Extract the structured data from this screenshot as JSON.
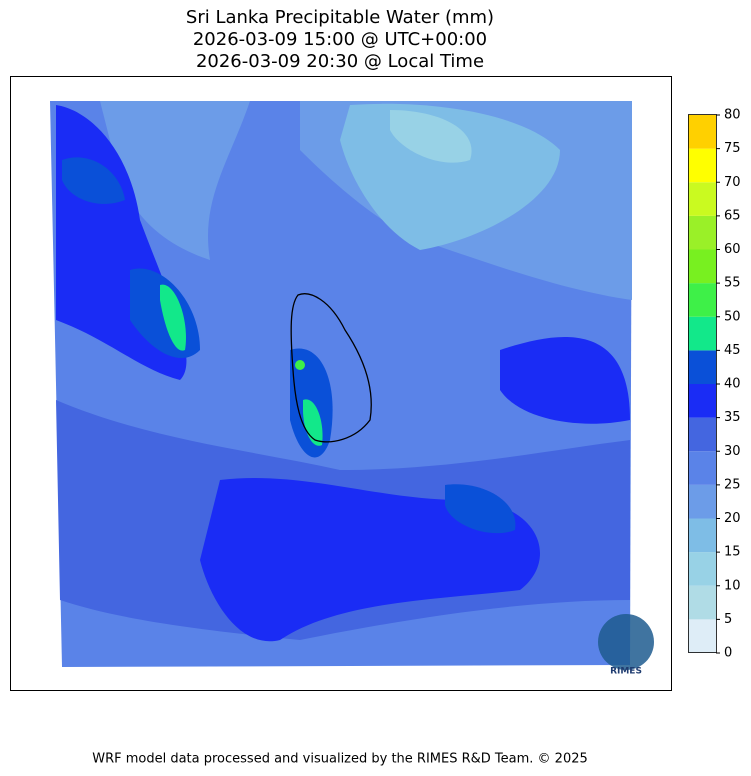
{
  "title": [
    "Sri Lanka Precipitable Water (mm)",
    "2026-03-09 15:00 @ UTC+00:00",
    "2026-03-09 20:30 @ Local Time"
  ],
  "colorbar": {
    "ticks": [
      0,
      5,
      10,
      15,
      20,
      25,
      30,
      35,
      40,
      45,
      50,
      55,
      60,
      65,
      70,
      75,
      80
    ],
    "colors": [
      "#deedf7",
      "#b0dce6",
      "#98d2e6",
      "#7ebde6",
      "#6c9ce8",
      "#5a83e8",
      "#4466e0",
      "#1a2cf5",
      "#0a50d8",
      "#12e88a",
      "#3ef048",
      "#78f020",
      "#9af028",
      "#cafa20",
      "#ffff00",
      "#ffd000"
    ]
  },
  "logo": {
    "label": "RIMES"
  },
  "footer": "WRF model data processed and visualized by the RIMES R&D Team. © 2025"
}
